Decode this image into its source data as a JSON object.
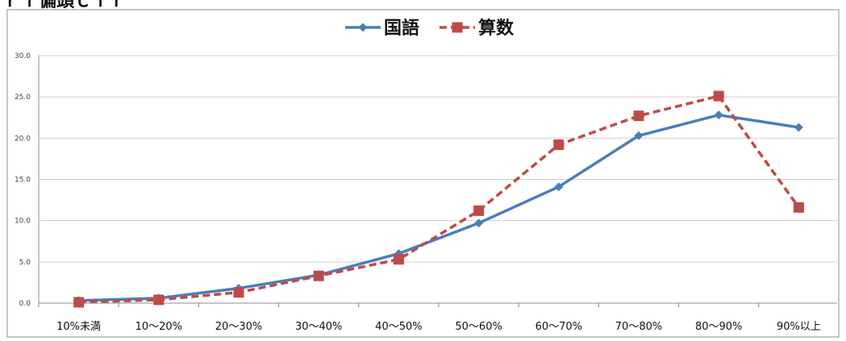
{
  "chart_data": {
    "type": "line",
    "title": "",
    "xlabel": "",
    "ylabel": "",
    "categories": [
      "10%未満",
      "10～20%",
      "20～30%",
      "30～40%",
      "40～50%",
      "50～60%",
      "60～70%",
      "70～80%",
      "80～90%",
      "90%以上"
    ],
    "y_ticks": [
      "0.0",
      "5.0",
      "10.0",
      "15.0",
      "20.0",
      "25.0",
      "30.0"
    ],
    "ylim": [
      0,
      30
    ],
    "grid": true,
    "legend_position": "top-center",
    "series": [
      {
        "name": "国語",
        "color": "#4a7ebb",
        "line_style": "solid",
        "marker": "diamond",
        "values": [
          0.3,
          0.6,
          1.8,
          3.4,
          6.0,
          9.7,
          14.1,
          20.3,
          22.8,
          21.3
        ]
      },
      {
        "name": "算数",
        "color": "#be4b48",
        "line_style": "dashed",
        "marker": "square",
        "values": [
          0.1,
          0.4,
          1.3,
          3.3,
          5.3,
          11.2,
          19.2,
          22.7,
          25.1,
          11.6
        ]
      }
    ]
  },
  "header": {
    "partial_title": "ｒｆ偏頭ｃｆｒ"
  }
}
